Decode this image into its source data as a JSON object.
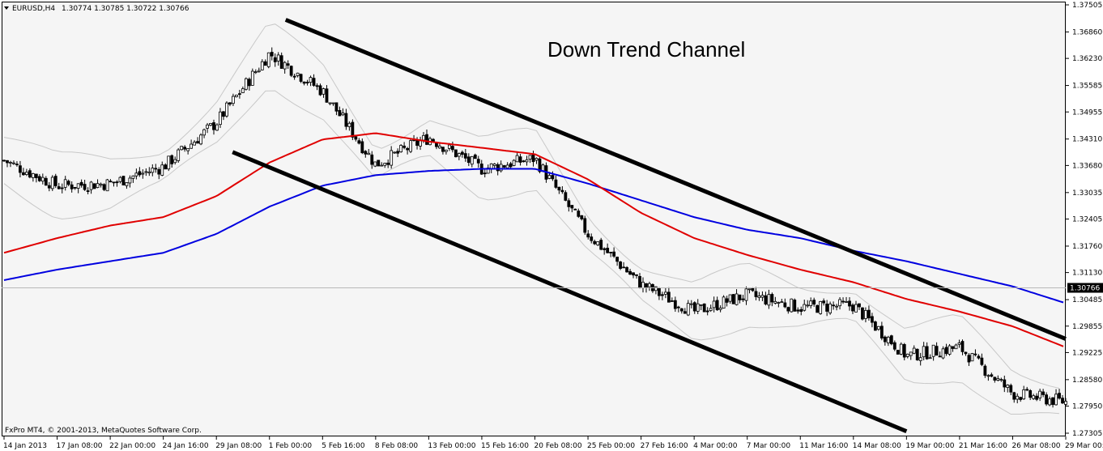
{
  "header": {
    "symbol": "EURUSD,H4",
    "ohlc": "1.30774 1.30785 1.30722 1.30766"
  },
  "footer": {
    "copyright": "FxPro MT4, © 2001-2013, MetaQuotes Software Corp."
  },
  "annotation": "Down Trend Channel",
  "colors": {
    "background": "#f5f5f5",
    "candle": "#000000",
    "ma_red": "#e00000",
    "ma_blue": "#0000e0",
    "bands": "#c8c8c8",
    "channel": "#000000",
    "price_label_bg": "#000000"
  },
  "chart_data": {
    "type": "candlestick",
    "y_ticks": [
      "1.37505",
      "1.36860",
      "1.36230",
      "1.35585",
      "1.34955",
      "1.34310",
      "1.33680",
      "1.33035",
      "1.32405",
      "1.31760",
      "1.31130",
      "1.30485",
      "1.29855",
      "1.29225",
      "1.28580",
      "1.27950",
      "1.27305"
    ],
    "current_price": "1.30766",
    "x_ticks": [
      "14 Jan 2013",
      "17 Jan 08:00",
      "22 Jan 00:00",
      "24 Jan 16:00",
      "29 Jan 08:00",
      "1 Feb 00:00",
      "5 Feb 16:00",
      "8 Feb 08:00",
      "13 Feb 00:00",
      "15 Feb 16:00",
      "20 Feb 08:00",
      "25 Feb 00:00",
      "27 Feb 16:00",
      "4 Mar 00:00",
      "7 Mar 00:00",
      "11 Mar 16:00",
      "14 Mar 08:00",
      "19 Mar 00:00",
      "21 Mar 16:00",
      "26 Mar 08:00",
      "29 Mar 00:00"
    ],
    "ylim": [
      1.27305,
      1.37505
    ],
    "close_path": [
      [
        "14 Jan 2013",
        1.338
      ],
      [
        "17 Jan 08:00",
        1.332
      ],
      [
        "22 Jan 00:00",
        1.3325
      ],
      [
        "24 Jan 16:00",
        1.3365
      ],
      [
        "29 Jan 08:00",
        1.347
      ],
      [
        "1 Feb 00:00",
        1.3635
      ],
      [
        "5 Feb 16:00",
        1.3545
      ],
      [
        "8 Feb 08:00",
        1.337
      ],
      [
        "13 Feb 00:00",
        1.3435
      ],
      [
        "15 Feb 16:00",
        1.336
      ],
      [
        "20 Feb 08:00",
        1.3385
      ],
      [
        "25 Feb 00:00",
        1.3205
      ],
      [
        "27 Feb 16:00",
        1.3085
      ],
      [
        "4 Mar 00:00",
        1.302
      ],
      [
        "7 Mar 00:00",
        1.306
      ],
      [
        "11 Mar 16:00",
        1.303
      ],
      [
        "14 Mar 08:00",
        1.3035
      ],
      [
        "19 Mar 00:00",
        1.2915
      ],
      [
        "21 Mar 16:00",
        1.2935
      ],
      [
        "26 Mar 08:00",
        1.2825
      ],
      [
        "29 Mar 00:00",
        1.2805
      ]
    ],
    "channel_upper": [
      [
        "1 Feb 00:00",
        1.3715
      ],
      [
        "29 Mar 00:00",
        1.2955
      ]
    ],
    "channel_lower": [
      [
        "29 Jan 08:00",
        1.34
      ],
      [
        "19 Mar 00:00",
        1.2735
      ]
    ],
    "ma_red": [
      [
        "14 Jan 2013",
        1.316
      ],
      [
        "17 Jan 08:00",
        1.3195
      ],
      [
        "22 Jan 00:00",
        1.3225
      ],
      [
        "24 Jan 16:00",
        1.3245
      ],
      [
        "29 Jan 08:00",
        1.3295
      ],
      [
        "1 Feb 00:00",
        1.3375
      ],
      [
        "5 Feb 16:00",
        1.343
      ],
      [
        "8 Feb 08:00",
        1.3445
      ],
      [
        "13 Feb 00:00",
        1.3425
      ],
      [
        "15 Feb 16:00",
        1.341
      ],
      [
        "20 Feb 08:00",
        1.3395
      ],
      [
        "25 Feb 00:00",
        1.3335
      ],
      [
        "27 Feb 16:00",
        1.3255
      ],
      [
        "4 Mar 00:00",
        1.3195
      ],
      [
        "7 Mar 00:00",
        1.3155
      ],
      [
        "11 Mar 16:00",
        1.312
      ],
      [
        "14 Mar 08:00",
        1.309
      ],
      [
        "19 Mar 00:00",
        1.305
      ],
      [
        "21 Mar 16:00",
        1.302
      ],
      [
        "26 Mar 08:00",
        1.2985
      ],
      [
        "29 Mar 00:00",
        1.2935
      ]
    ],
    "ma_blue": [
      [
        "14 Jan 2013",
        1.3095
      ],
      [
        "17 Jan 08:00",
        1.312
      ],
      [
        "22 Jan 00:00",
        1.314
      ],
      [
        "24 Jan 16:00",
        1.316
      ],
      [
        "29 Jan 08:00",
        1.3205
      ],
      [
        "1 Feb 00:00",
        1.327
      ],
      [
        "5 Feb 16:00",
        1.332
      ],
      [
        "8 Feb 08:00",
        1.3345
      ],
      [
        "13 Feb 00:00",
        1.3355
      ],
      [
        "15 Feb 16:00",
        1.336
      ],
      [
        "20 Feb 08:00",
        1.336
      ],
      [
        "25 Feb 00:00",
        1.3325
      ],
      [
        "27 Feb 16:00",
        1.3285
      ],
      [
        "4 Mar 00:00",
        1.3245
      ],
      [
        "7 Mar 00:00",
        1.3215
      ],
      [
        "11 Mar 16:00",
        1.3195
      ],
      [
        "14 Mar 08:00",
        1.3165
      ],
      [
        "19 Mar 00:00",
        1.314
      ],
      [
        "21 Mar 16:00",
        1.311
      ],
      [
        "26 Mar 08:00",
        1.308
      ],
      [
        "29 Mar 00:00",
        1.304
      ]
    ]
  }
}
